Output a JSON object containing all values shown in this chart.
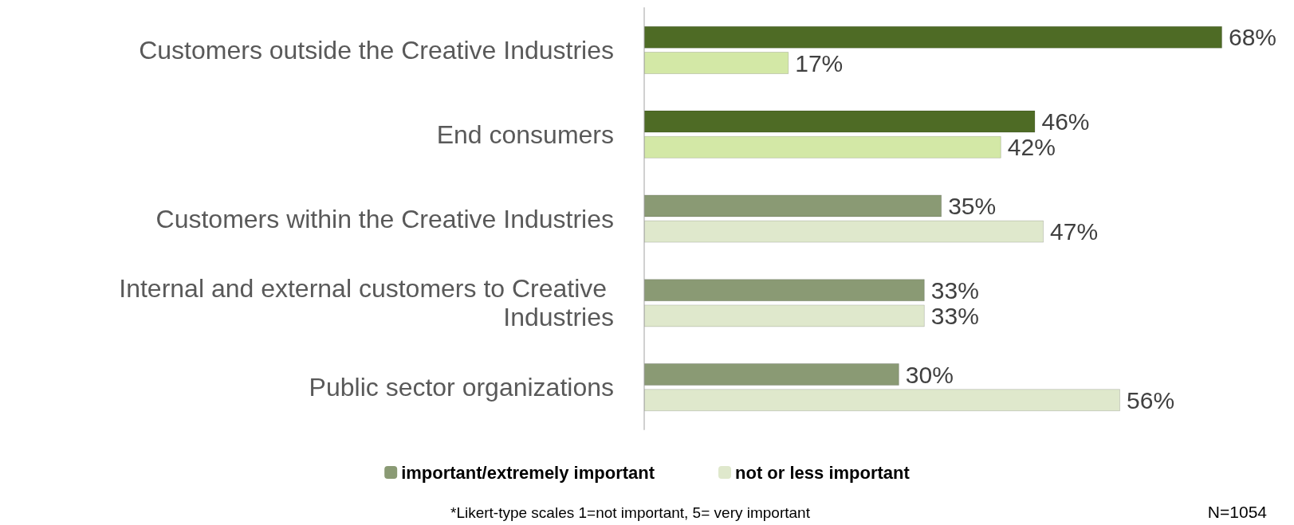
{
  "chart_data": {
    "type": "bar",
    "orientation": "horizontal",
    "categories": [
      "Customers outside the Creative Industries",
      "End consumers",
      "Customers within the Creative Industries",
      "Internal and external customers to Creative Industries",
      "Public sector organizations"
    ],
    "series": [
      {
        "name": "important/extremely important",
        "color": "#8a9a74",
        "colors": [
          "#4e6b25",
          "#4e6b25",
          "#8a9a74",
          "#8a9a74",
          "#8a9a74"
        ],
        "values": [
          68,
          46,
          35,
          33,
          30
        ],
        "value_labels": [
          "68%",
          "46%",
          "35%",
          "33%",
          "30%"
        ]
      },
      {
        "name": "not or less important",
        "color": "#dfe8cc",
        "colors": [
          "#d3e8a6",
          "#d3e8a6",
          "#dfe8cc",
          "#dfe8cc",
          "#dfe8cc"
        ],
        "values": [
          17,
          42,
          47,
          33,
          56
        ],
        "value_labels": [
          "17%",
          "42%",
          "47%",
          "33%",
          "56%"
        ]
      }
    ],
    "legend": "bottom",
    "grid": false,
    "annotations": [
      "*Likert-type scales 1=not important, 5= very important",
      "N=1054"
    ]
  }
}
